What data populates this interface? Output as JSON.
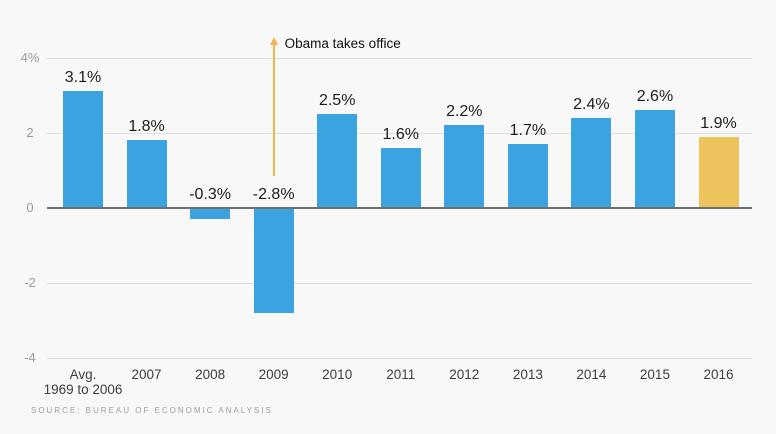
{
  "chart_data": {
    "type": "bar",
    "title": "",
    "categories": [
      "Avg. 1969 to 2006",
      "2007",
      "2008",
      "2009",
      "2010",
      "2011",
      "2012",
      "2013",
      "2014",
      "2015",
      "2016"
    ],
    "category_display": [
      [
        "Avg.",
        "1969 to 2006"
      ],
      [
        "2007"
      ],
      [
        "2008"
      ],
      [
        "2009"
      ],
      [
        "2010"
      ],
      [
        "2011"
      ],
      [
        "2012"
      ],
      [
        "2013"
      ],
      [
        "2014"
      ],
      [
        "2015"
      ],
      [
        "2016"
      ]
    ],
    "values": [
      3.1,
      1.8,
      -0.3,
      -2.8,
      2.5,
      1.6,
      2.2,
      1.7,
      2.4,
      2.6,
      1.9
    ],
    "value_labels": [
      "3.1%",
      "1.8%",
      "-0.3%",
      "-2.8%",
      "2.5%",
      "1.6%",
      "2.2%",
      "1.7%",
      "2.4%",
      "2.6%",
      "1.9%"
    ],
    "xlabel": "",
    "ylabel": "",
    "ylim": [
      -4,
      4
    ],
    "grid": true,
    "yticks": [
      {
        "value": 4,
        "label": "4%"
      },
      {
        "value": 2,
        "label": "2"
      },
      {
        "value": 0,
        "label": "0"
      },
      {
        "value": -2,
        "label": "-2"
      },
      {
        "value": -4,
        "label": "-4"
      }
    ],
    "highlight_index": 10,
    "annotation": {
      "text": "Obama takes office",
      "category": "2009",
      "category_index": 3
    },
    "source": "SOURCE: BUREAU OF ECONOMIC ANALYSIS",
    "colors": {
      "bar": "#3aa3e0",
      "highlight_bar": "#edc45c",
      "annotation_line": "#f0b44a",
      "background": "#f8f8f8",
      "gridline": "#dedede",
      "zero_line": "#6d7073",
      "tick_label": "#9b9b9b",
      "category_label": "#3d3d3d",
      "value_label": "#1c1c1c",
      "source_text": "#9e9e9e"
    }
  }
}
